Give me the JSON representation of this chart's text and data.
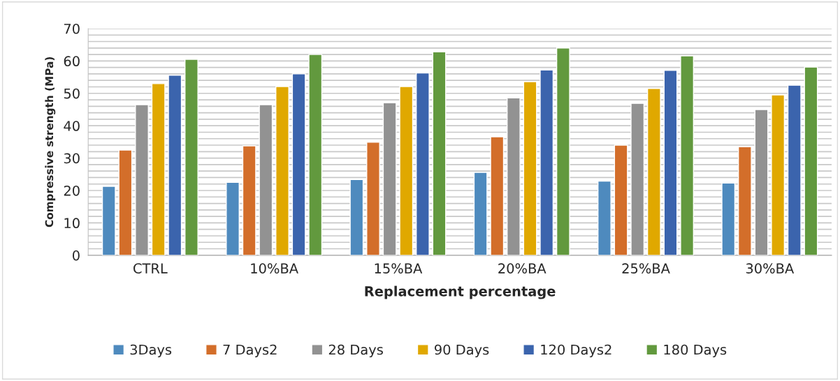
{
  "chart_data": {
    "type": "bar",
    "xlabel": "Replacement percentage",
    "ylabel": "Compressive strength (MPa)",
    "categories": [
      "CTRL",
      "10%BA",
      "15%BA",
      "20%BA",
      "25%BA",
      "30%BA"
    ],
    "series": [
      {
        "name": "3Days",
        "color": "#4e8abe",
        "values": [
          21.3,
          22.5,
          23.4,
          25.6,
          22.9,
          22.3
        ]
      },
      {
        "name": "7 Days2",
        "color": "#d36e2a",
        "values": [
          32.5,
          33.8,
          34.9,
          36.6,
          34.0,
          33.5
        ]
      },
      {
        "name": "28 Days",
        "color": "#929292",
        "values": [
          46.5,
          46.5,
          47.1,
          48.6,
          46.9,
          45.0
        ]
      },
      {
        "name": "90 Days",
        "color": "#e0a800",
        "values": [
          53.0,
          52.1,
          52.1,
          53.6,
          51.5,
          49.5
        ]
      },
      {
        "name": "120 Days2",
        "color": "#3b64ad",
        "values": [
          55.6,
          56.0,
          56.3,
          57.2,
          57.1,
          52.5
        ]
      },
      {
        "name": "180 Days",
        "color": "#62993e",
        "values": [
          60.5,
          62.0,
          62.8,
          64.0,
          61.6,
          58.1
        ]
      }
    ],
    "ylim": [
      0,
      70
    ],
    "yticks": [
      0,
      {
        "value": 2,
        "label": null
      },
      {
        "value": 4,
        "label": null
      },
      {
        "value": 6,
        "label": null
      },
      {
        "value": 8,
        "label": null
      },
      10,
      {
        "value": 12,
        "label": null
      },
      {
        "value": 14,
        "label": null
      },
      {
        "value": 16,
        "label": null
      },
      {
        "value": 18,
        "label": null
      },
      20,
      {
        "value": 22,
        "label": null
      },
      {
        "value": 24,
        "label": null
      },
      {
        "value": 26,
        "label": null
      },
      {
        "value": 28,
        "label": null
      },
      30,
      {
        "value": 32,
        "label": null
      },
      {
        "value": 34,
        "label": null
      },
      {
        "value": 36,
        "label": null
      },
      {
        "value": 38,
        "label": null
      },
      40,
      {
        "value": 42,
        "label": null
      },
      {
        "value": 44,
        "label": null
      },
      {
        "value": 46,
        "label": null
      },
      {
        "value": 48,
        "label": null
      },
      50,
      {
        "value": 52,
        "label": null
      },
      {
        "value": 54,
        "label": null
      },
      {
        "value": 56,
        "label": null
      },
      {
        "value": 58,
        "label": null
      },
      60,
      {
        "value": 62,
        "label": null
      },
      {
        "value": 64,
        "label": null
      },
      {
        "value": 66,
        "label": null
      },
      {
        "value": 68,
        "label": null
      },
      70
    ],
    "grid": "y",
    "legend": "bottom"
  }
}
